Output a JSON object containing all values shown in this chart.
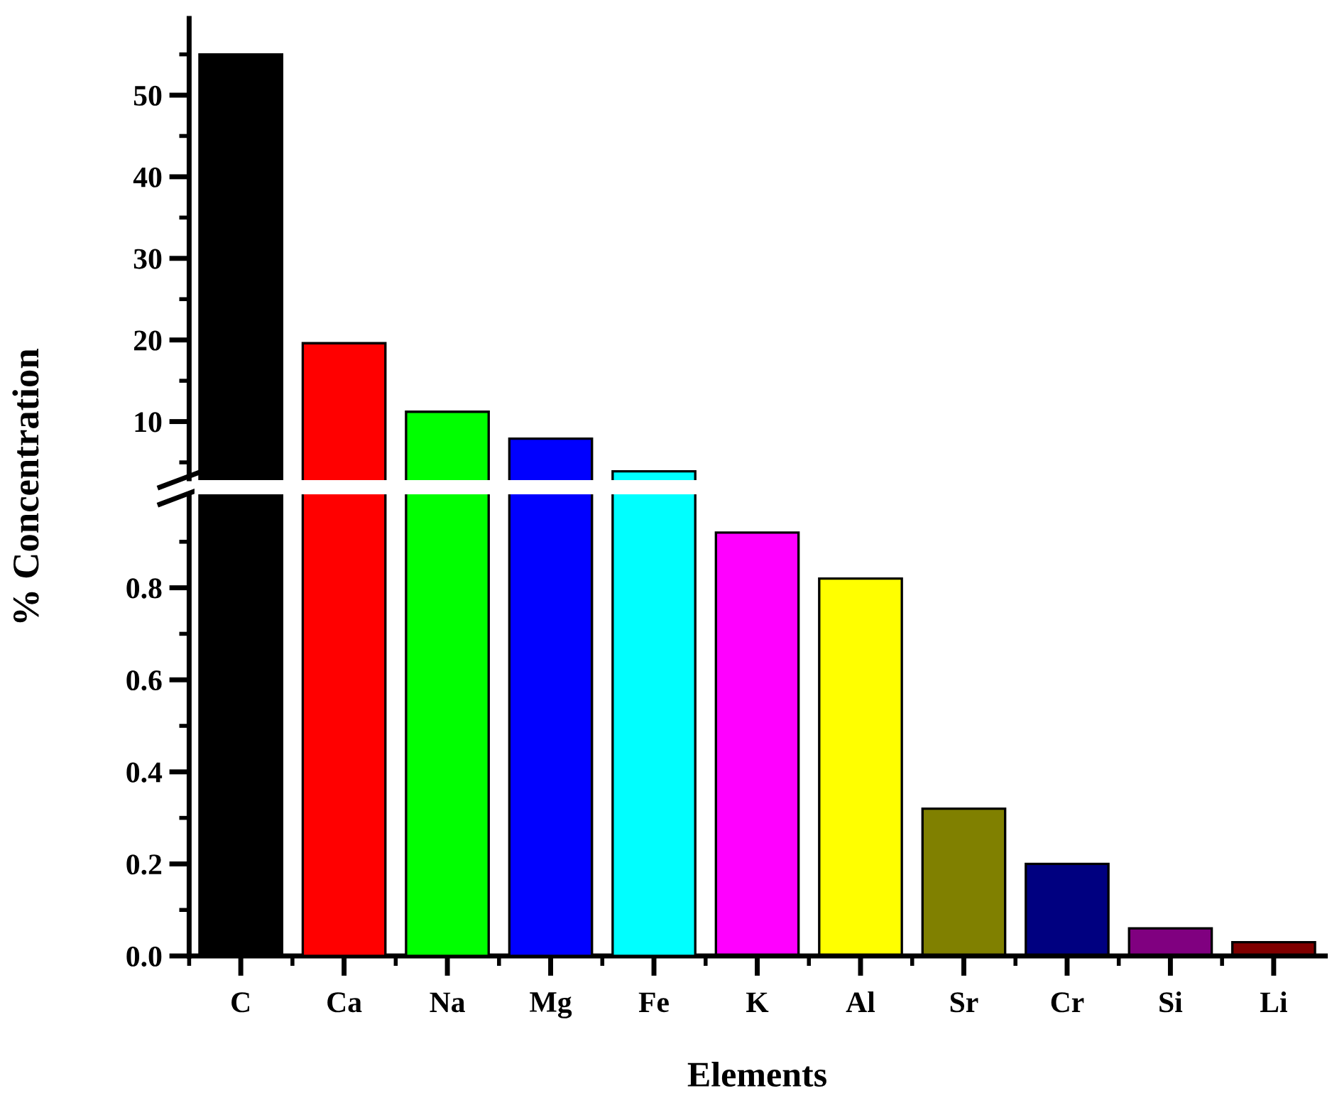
{
  "chart_data": [
    {
      "type": "bar",
      "ylabel": "% Concentration",
      "categories": [
        null,
        null,
        null,
        null,
        null,
        null,
        null,
        null,
        null,
        null,
        null
      ],
      "values": [
        55,
        19.6,
        11.2,
        7.9,
        3.9,
        null,
        null,
        null,
        null,
        null,
        null
      ],
      "colors": [
        "#000000",
        "#ff0000",
        "#00ff00",
        "#0000ff",
        "#00ffff",
        "#ff00ff",
        "#ffff00",
        "#808000",
        "#000080",
        "#800080",
        "#800000"
      ],
      "ylim": [
        3,
        59.4
      ],
      "yticks": [
        {
          "value": 5,
          "label": null
        },
        10,
        {
          "value": 15,
          "label": null
        },
        20,
        {
          "value": 25,
          "label": null
        },
        30,
        {
          "value": 35,
          "label": null
        },
        40,
        {
          "value": 45,
          "label": null
        },
        50,
        {
          "value": 55,
          "label": null
        }
      ],
      "tick_labels": "y"
    },
    {
      "type": "bar",
      "xlabel": "Elements",
      "categories": [
        "C",
        "Ca",
        "Na",
        "Mg",
        "Fe",
        "K",
        "Al",
        "Sr",
        "Cr",
        "Si",
        "Li"
      ],
      "values": [
        null,
        null,
        null,
        null,
        null,
        0.92,
        0.82,
        0.32,
        0.2,
        0.06,
        0.03
      ],
      "colors": [
        "#000000",
        "#ff0000",
        "#00ff00",
        "#0000ff",
        "#00ffff",
        "#ff00ff",
        "#ffff00",
        "#808000",
        "#000080",
        "#800080",
        "#800000"
      ],
      "ylim": [
        0,
        1.0
      ],
      "yticks": [
        {
          "value": 0,
          "label": "0.0"
        },
        {
          "value": 0.1,
          "label": null
        },
        0.2,
        {
          "value": 0.3,
          "label": null
        },
        0.4,
        {
          "value": 0.5,
          "label": null
        },
        0.6,
        {
          "value": 0.7,
          "label": null
        },
        0.8,
        {
          "value": 0.9,
          "label": null
        }
      ]
    }
  ]
}
